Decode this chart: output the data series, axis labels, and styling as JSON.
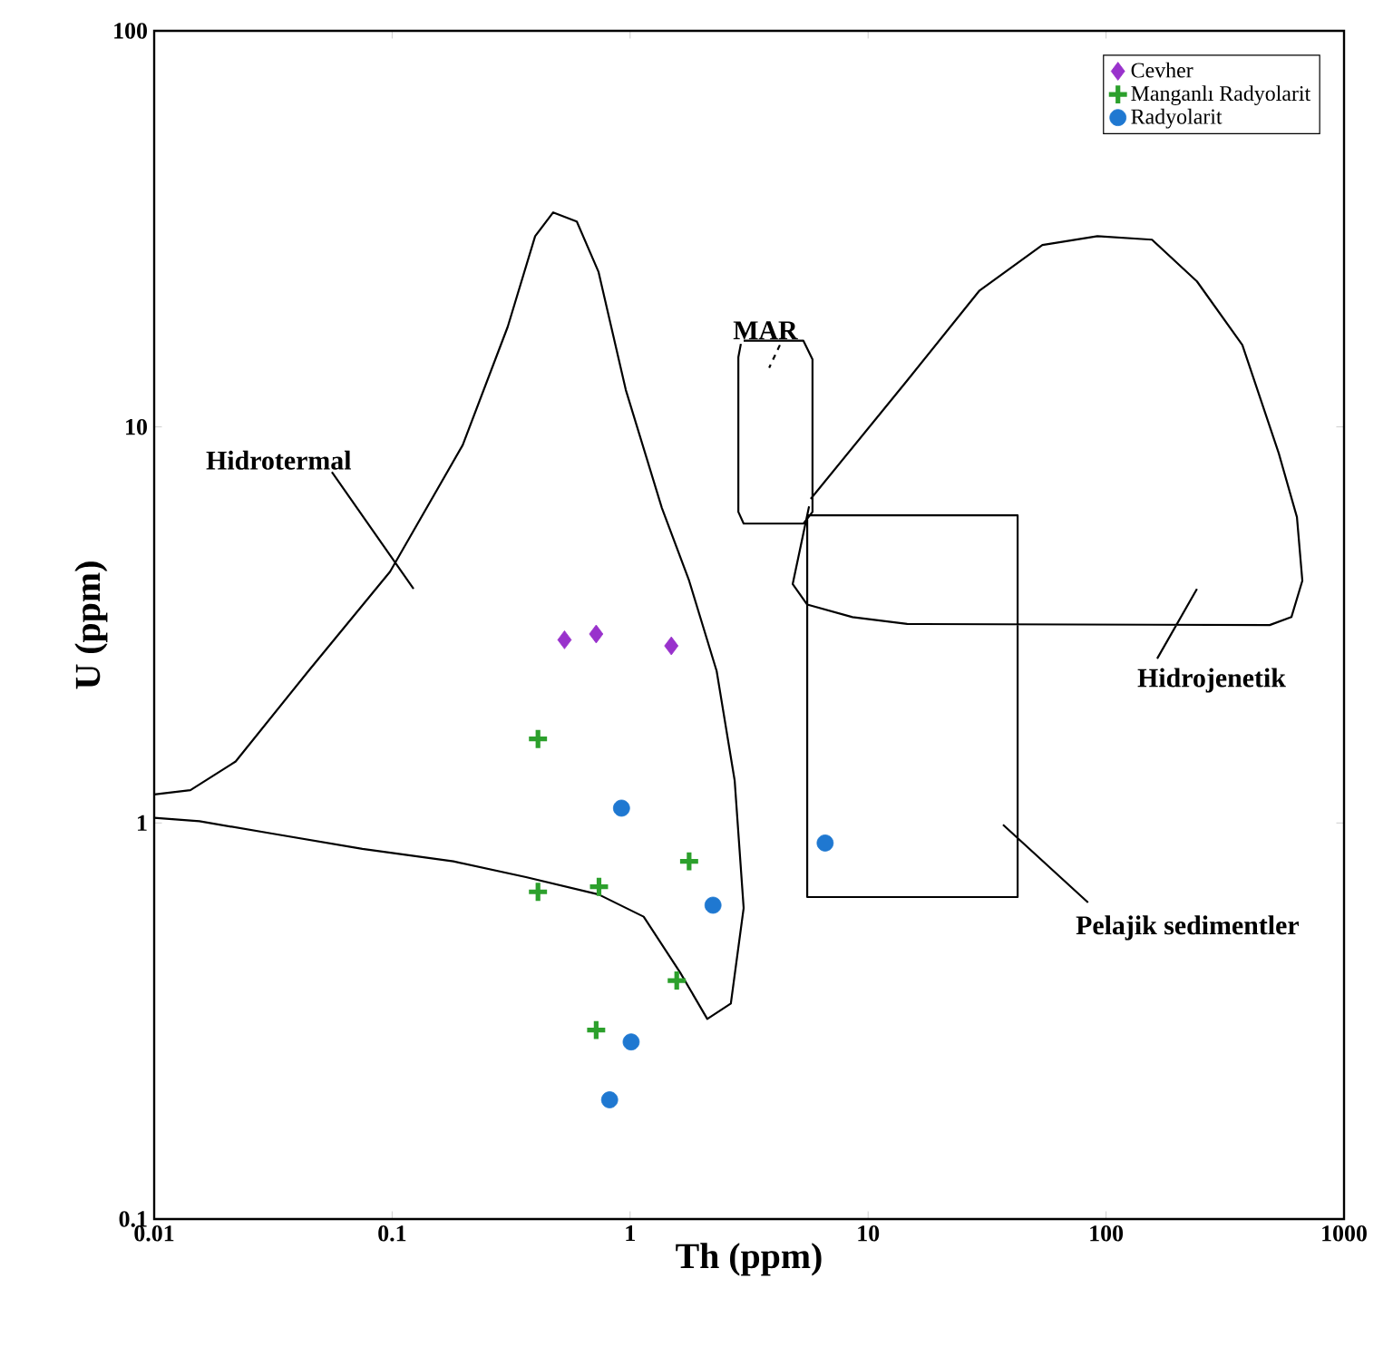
{
  "chart_data": {
    "type": "scatter",
    "xlabel": "Th (ppm)",
    "ylabel": "U (ppm)",
    "log": "xy",
    "xlim": [
      0.01,
      1000
    ],
    "ylim": [
      0.1,
      100
    ],
    "xticks": [
      0.01,
      0.1,
      1,
      10,
      100,
      1000
    ],
    "yticks": [
      0.1,
      1,
      10,
      100
    ],
    "legend": "top right",
    "series": [
      {
        "type": "line",
        "color": "#000000",
        "x": [
          0.01,
          0.0142,
          0.022,
          0.0445,
          0.098,
          0.198,
          0.306,
          0.399,
          0.475,
          0.597,
          0.737,
          0.959,
          1.36,
          1.77,
          2.31,
          2.75,
          3.0,
          2.65,
          2.11,
          1.62,
          1.14,
          0.737,
          0.365,
          0.181,
          0.075,
          0.0313,
          0.0155,
          0.01,
          null,
          3.0,
          5.35,
          5.84,
          5.84,
          5.35,
          3.0,
          2.85,
          2.85,
          2.92,
          null,
          5.55,
          42.5,
          42.5,
          5.55,
          5.55,
          null,
          5.74,
          14.6,
          29.4,
          54,
          92,
          156,
          241,
          374,
          532,
          634,
          668,
          601,
          487,
          14.6,
          8.6,
          5.55,
          4.82,
          5.65,
          null,
          0.0558,
          0.123,
          null,
          164,
          241,
          null,
          36.9,
          84
        ],
        "values": [
          1.18,
          1.21,
          1.43,
          2.42,
          4.31,
          9.0,
          17.9,
          30.3,
          34.8,
          33.0,
          24.6,
          12.4,
          6.24,
          4.09,
          2.42,
          1.28,
          0.61,
          0.35,
          0.32,
          0.42,
          0.58,
          0.66,
          0.73,
          0.8,
          0.86,
          0.94,
          1.01,
          1.03,
          null,
          16.5,
          16.5,
          14.8,
          6.1,
          5.7,
          5.7,
          6.1,
          15.0,
          16.2,
          null,
          5.98,
          5.98,
          0.65,
          0.65,
          5.9,
          null,
          6.58,
          13.1,
          22.1,
          28.8,
          30.3,
          29.7,
          23.3,
          16.1,
          8.57,
          5.92,
          4.09,
          3.31,
          3.16,
          3.18,
          3.31,
          3.56,
          4.01,
          6.3,
          null,
          7.7,
          3.9,
          null,
          2.6,
          3.9,
          null,
          0.99,
          0.63
        ]
      },
      {
        "type": "line",
        "color": "#000000",
        "line_style": "dashed",
        "x": [
          4.26,
          3.84
        ],
        "values": [
          16.1,
          14.1
        ]
      },
      {
        "name": "Cevher",
        "color": "#9932cc",
        "marker": "diamond",
        "x": [
          0.53,
          0.72,
          1.49
        ],
        "values": [
          2.9,
          3.0,
          2.8
        ]
      },
      {
        "name": "Manganlı Radyolarit",
        "color": "#2ca02c",
        "marker": "cross",
        "x": [
          0.41,
          0.41,
          0.74,
          1.77,
          1.57,
          0.72
        ],
        "values": [
          1.63,
          0.67,
          0.69,
          0.8,
          0.4,
          0.3
        ]
      },
      {
        "name": "Radyolarit",
        "color": "#1f78d1",
        "marker": "circle",
        "x": [
          0.92,
          2.23,
          6.6,
          1.01,
          0.82
        ],
        "values": [
          1.09,
          0.62,
          0.89,
          0.28,
          0.2
        ]
      }
    ],
    "annotations": [
      {
        "text": "Hidrotermal",
        "x": 0.0558,
        "y": 7.7
      },
      {
        "text": "MAR",
        "x": 4.26,
        "y": 16.1
      },
      {
        "text": "Hidrojenetik",
        "x": 164,
        "y": 2.6
      },
      {
        "text": "Pelajik sedimentler",
        "x": 84,
        "y": 0.63
      }
    ]
  }
}
